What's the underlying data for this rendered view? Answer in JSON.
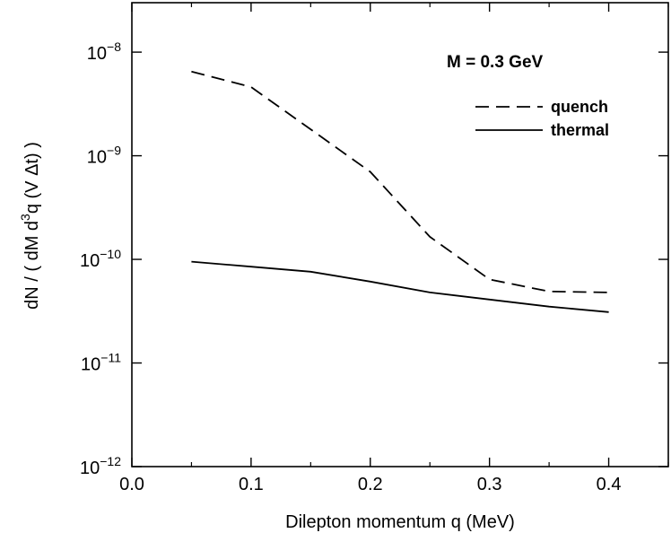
{
  "chart_data": {
    "type": "line",
    "xlabel": "Dilepton momentum q (MeV)",
    "ylabel": "dN / ( dM d³q (V Δt) )",
    "ylabel_parts": [
      "dN / ( dM d",
      "3",
      "q (V ",
      "Δ",
      "t) )"
    ],
    "xlim": [
      0.0,
      0.45
    ],
    "ylim": [
      1e-12,
      3e-08
    ],
    "yscale": "log",
    "grid": false,
    "legend_position": "top-right",
    "annotation": "M = 0.3 GeV",
    "x_ticks": [
      0.0,
      0.1,
      0.2,
      0.3,
      0.4
    ],
    "x_tick_labels": [
      "0.0",
      "0.1",
      "0.2",
      "0.3",
      "0.4"
    ],
    "y_ticks": [
      {
        "value": 1e-08,
        "base": "10",
        "exp": "−8"
      },
      {
        "value": 1e-09,
        "base": "10",
        "exp": "−9"
      },
      {
        "value": 1e-10,
        "base": "10",
        "exp": "−10"
      },
      {
        "value": 1e-11,
        "base": "10",
        "exp": "−11"
      },
      {
        "value": 1e-12,
        "base": "10",
        "exp": "−12"
      }
    ],
    "series": [
      {
        "name": "quench",
        "style": "dashed",
        "color": "#000000",
        "x": [
          0.05,
          0.1,
          0.15,
          0.2,
          0.25,
          0.3,
          0.35,
          0.4
        ],
        "y": [
          6.5e-09,
          4.6e-09,
          1.8e-09,
          7e-10,
          1.65e-10,
          6.4e-11,
          4.9e-11,
          4.8e-11
        ]
      },
      {
        "name": "thermal",
        "style": "solid",
        "color": "#000000",
        "x": [
          0.05,
          0.1,
          0.15,
          0.2,
          0.25,
          0.3,
          0.35,
          0.4
        ],
        "y": [
          9.5e-11,
          8.5e-11,
          7.6e-11,
          6.1e-11,
          4.8e-11,
          4.1e-11,
          3.5e-11,
          3.1e-11
        ]
      }
    ]
  }
}
